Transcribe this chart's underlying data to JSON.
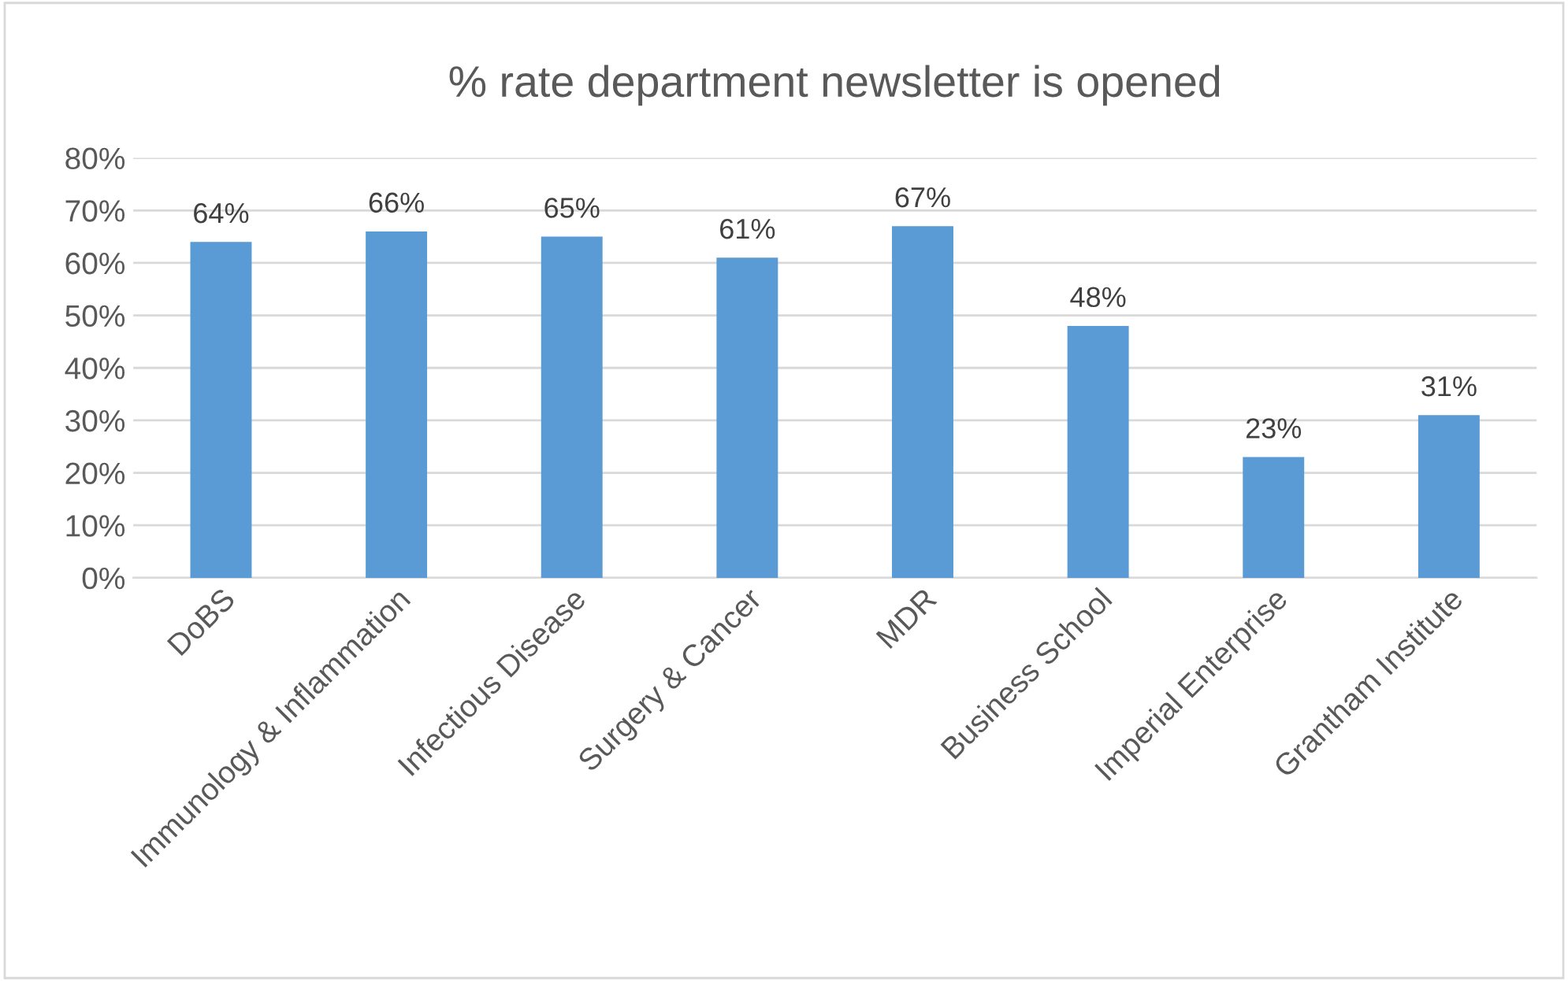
{
  "chart_data": {
    "type": "bar",
    "title": "% rate department newsletter is opened",
    "categories": [
      "DoBS",
      "Immunology & Inflammation",
      "Infectious Disease",
      "Surgery & Cancer",
      "MDR",
      "Business School",
      "Imperial Enterprise",
      "Grantham Institute"
    ],
    "values": [
      64,
      66,
      65,
      61,
      67,
      48,
      23,
      31
    ],
    "value_labels": [
      "64%",
      "66%",
      "65%",
      "61%",
      "67%",
      "48%",
      "23%",
      "31%"
    ],
    "color": "#5b9bd5",
    "ylim": [
      0,
      80
    ],
    "yticks": [
      {
        "value": 0,
        "label": "0%"
      },
      {
        "value": 10,
        "label": "10%"
      },
      {
        "value": 20,
        "label": "20%"
      },
      {
        "value": 30,
        "label": "30%"
      },
      {
        "value": 40,
        "label": "40%"
      },
      {
        "value": 50,
        "label": "50%"
      },
      {
        "value": 60,
        "label": "60%"
      },
      {
        "value": 70,
        "label": "70%"
      },
      {
        "value": 80,
        "label": "80%"
      }
    ],
    "grid": "y",
    "legend": false
  }
}
